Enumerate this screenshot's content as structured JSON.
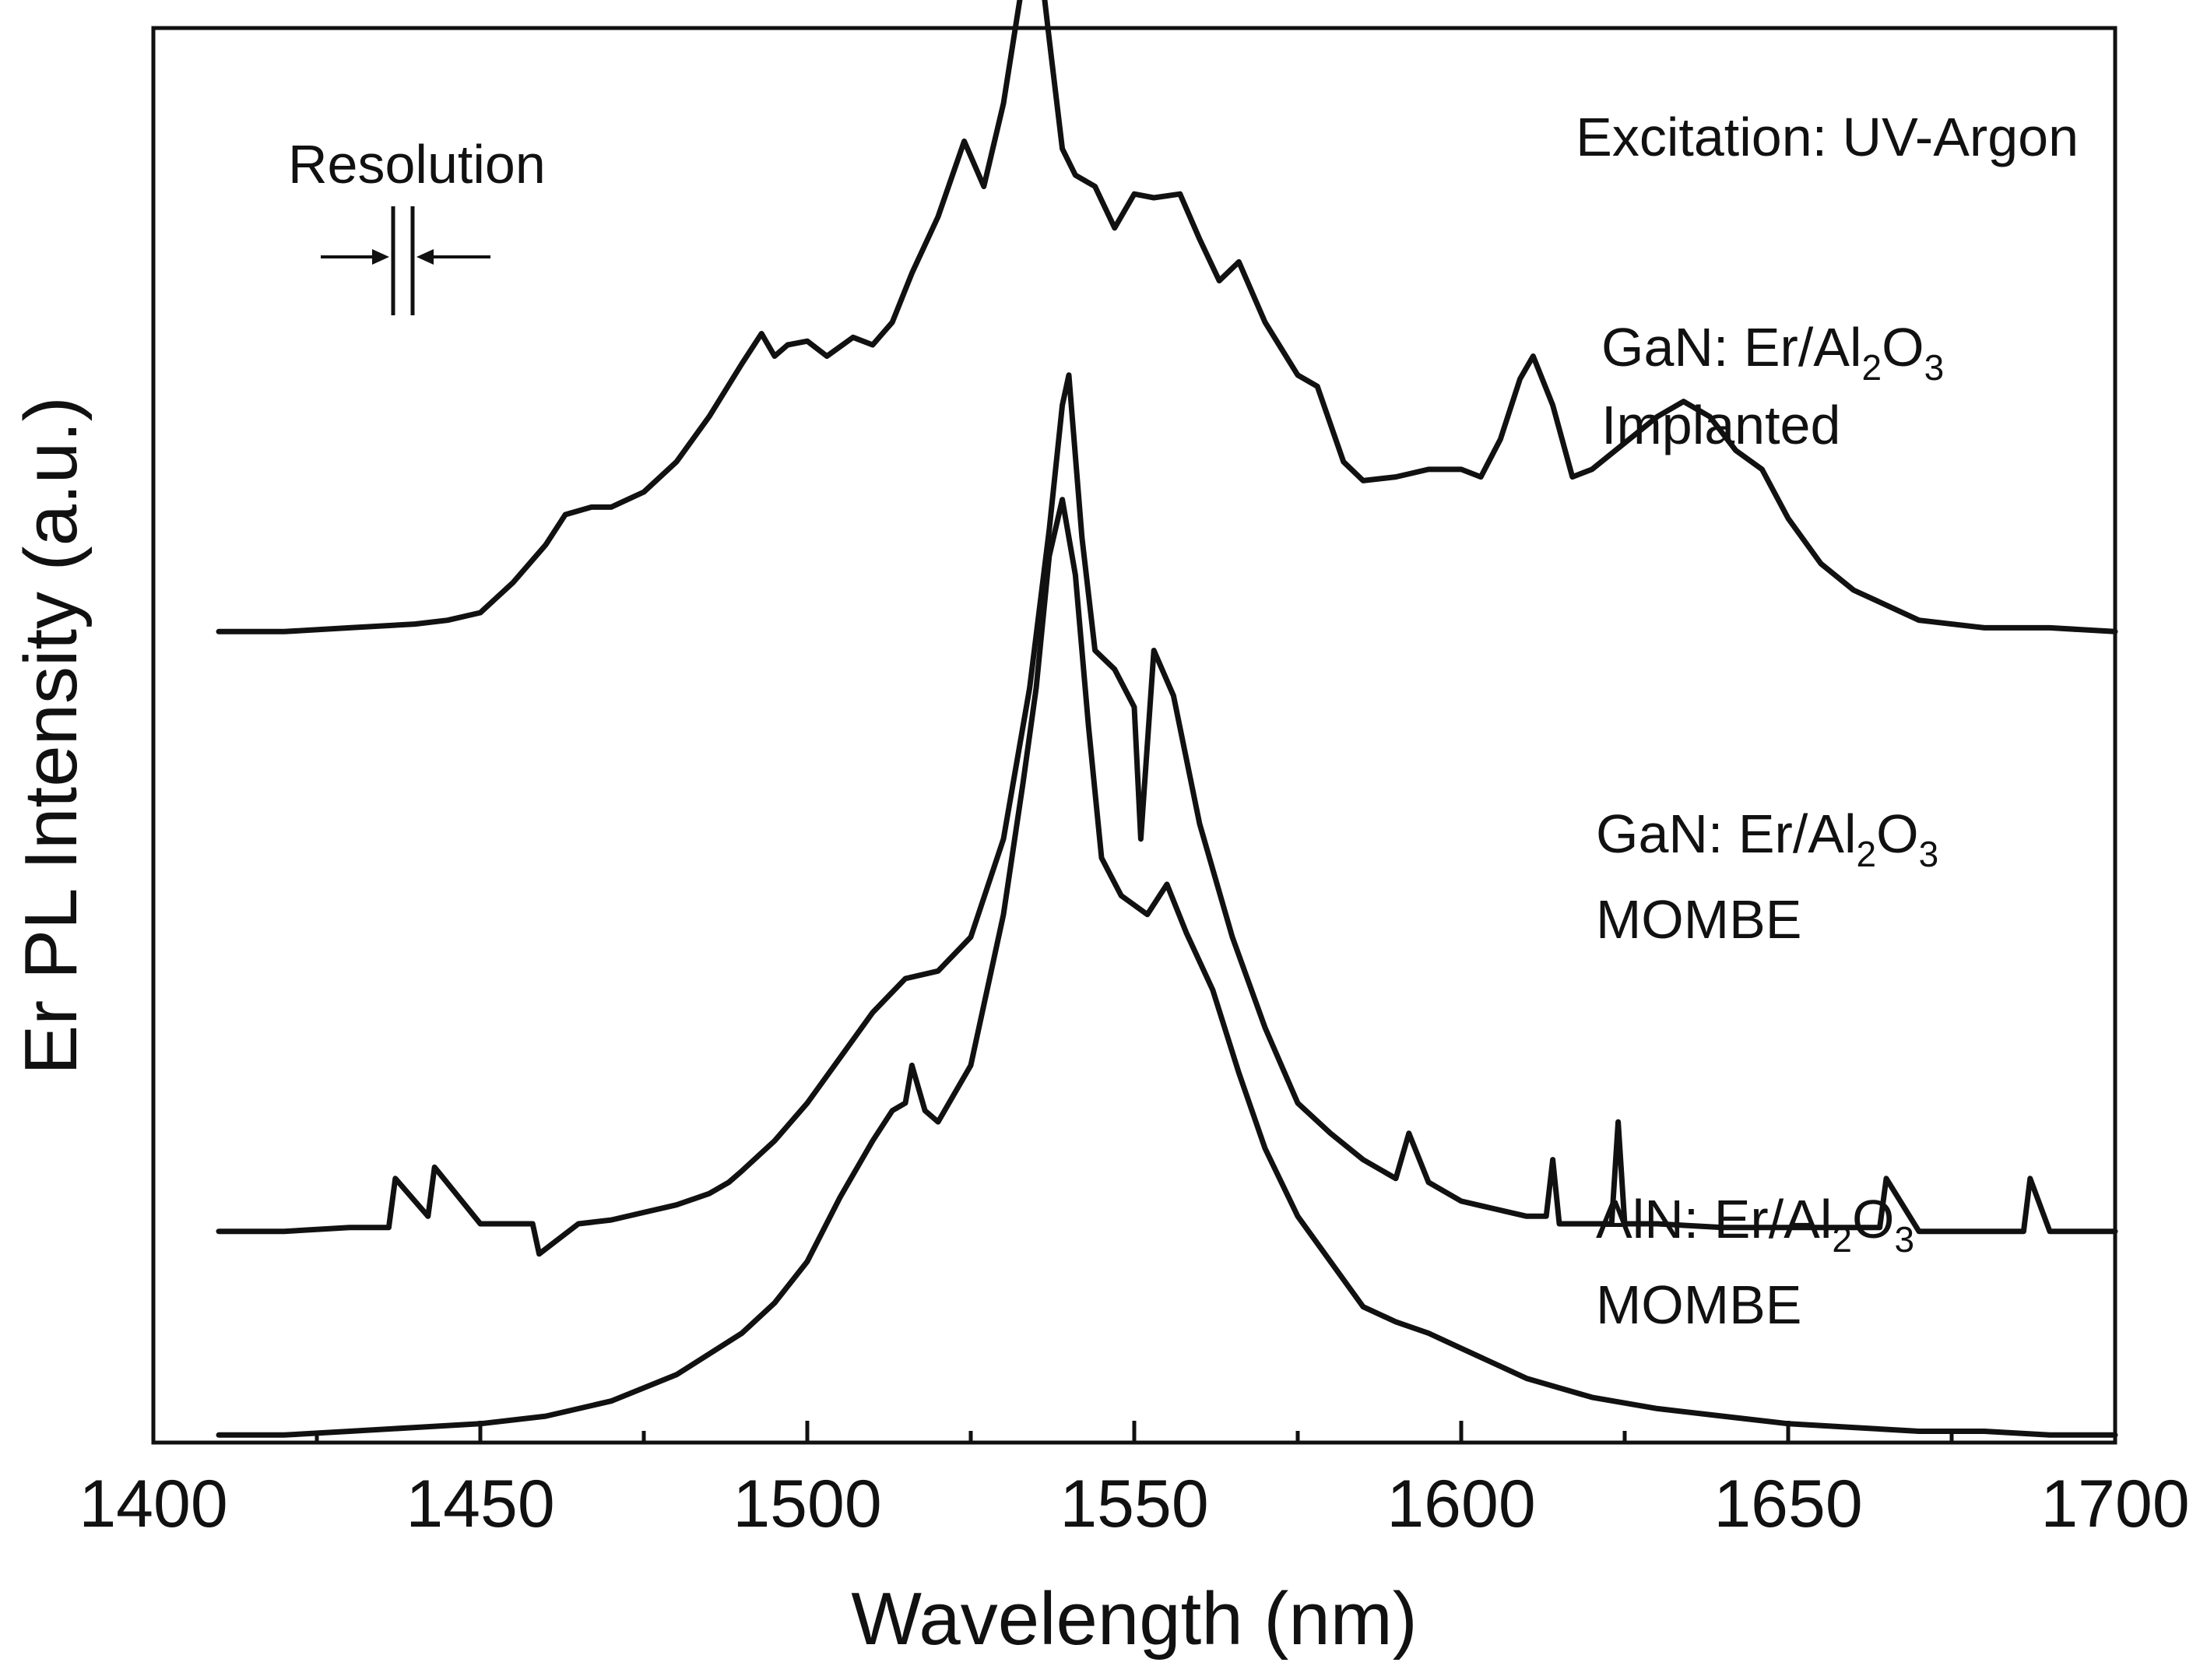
{
  "chart_data": {
    "type": "line",
    "title": "",
    "xlabel": "Wavelength (nm)",
    "ylabel": "Er PL Intensity (a.u.)",
    "xlim": [
      1400,
      1700
    ],
    "ylim": [
      0,
      3.75
    ],
    "x_ticks": [
      1400,
      1450,
      1500,
      1550,
      1600,
      1650,
      1700
    ],
    "x_tick_labels": [
      "1400",
      "1450",
      "1500",
      "1550",
      "1600",
      "1650",
      "1700"
    ],
    "y_ticks_shown": false,
    "grid": false,
    "annotations": {
      "excitation": "Excitation: UV-Argon",
      "resolution": "Resolution"
    },
    "series": [
      {
        "name": "GaN: Er/Al2O3 Implanted",
        "label_parts": {
          "host": "GaN: Er/Al",
          "sub1": "2",
          "mid": "O",
          "sub2": "3",
          "line2": "Implanted"
        },
        "x": [
          1410,
          1420,
          1430,
          1440,
          1445,
          1450,
          1455,
          1460,
          1463,
          1467,
          1470,
          1475,
          1480,
          1485,
          1490,
          1493,
          1495,
          1497,
          1500,
          1503,
          1507,
          1510,
          1513,
          1516,
          1520,
          1524,
          1527,
          1530,
          1533,
          1535,
          1537,
          1539,
          1541,
          1544,
          1547,
          1550,
          1553,
          1557,
          1560,
          1563,
          1566,
          1570,
          1575,
          1578,
          1582,
          1585,
          1590,
          1595,
          1600,
          1603,
          1606,
          1609,
          1611,
          1614,
          1617,
          1620,
          1625,
          1630,
          1634,
          1638,
          1642,
          1646,
          1650,
          1655,
          1660,
          1665,
          1670,
          1680,
          1690,
          1700
        ],
        "y": [
          2.15,
          2.15,
          2.16,
          2.17,
          2.18,
          2.2,
          2.28,
          2.38,
          2.46,
          2.48,
          2.48,
          2.52,
          2.6,
          2.72,
          2.86,
          2.94,
          2.88,
          2.91,
          2.92,
          2.88,
          2.93,
          2.91,
          2.97,
          3.1,
          3.25,
          3.45,
          3.33,
          3.55,
          3.88,
          4.02,
          3.72,
          3.43,
          3.36,
          3.33,
          3.22,
          3.31,
          3.3,
          3.31,
          3.19,
          3.08,
          3.13,
          2.97,
          2.83,
          2.8,
          2.6,
          2.55,
          2.56,
          2.58,
          2.58,
          2.56,
          2.66,
          2.82,
          2.88,
          2.75,
          2.56,
          2.58,
          2.65,
          2.72,
          2.76,
          2.72,
          2.63,
          2.58,
          2.45,
          2.33,
          2.26,
          2.22,
          2.18,
          2.16,
          2.16,
          2.15
        ]
      },
      {
        "name": "GaN: Er/Al2O3 MOMBE",
        "label_parts": {
          "host": "GaN: Er/Al",
          "sub1": "2",
          "mid": "O",
          "sub2": "3",
          "line2": "MOMBE"
        },
        "x": [
          1410,
          1420,
          1430,
          1436,
          1437,
          1442,
          1443,
          1450,
          1458,
          1459,
          1465,
          1470,
          1475,
          1480,
          1485,
          1488,
          1490,
          1495,
          1500,
          1505,
          1510,
          1515,
          1520,
          1525,
          1530,
          1534,
          1537,
          1539,
          1540,
          1542,
          1544,
          1547,
          1550,
          1551,
          1553,
          1556,
          1560,
          1565,
          1570,
          1575,
          1580,
          1585,
          1590,
          1592,
          1595,
          1600,
          1605,
          1610,
          1613,
          1614,
          1615,
          1620,
          1623,
          1624,
          1625,
          1630,
          1640,
          1650,
          1660,
          1664,
          1665,
          1670,
          1680,
          1686,
          1687,
          1690,
          1700
        ],
        "y": [
          0.56,
          0.56,
          0.57,
          0.57,
          0.7,
          0.6,
          0.73,
          0.58,
          0.58,
          0.5,
          0.58,
          0.59,
          0.61,
          0.63,
          0.66,
          0.69,
          0.72,
          0.8,
          0.9,
          1.02,
          1.14,
          1.23,
          1.25,
          1.34,
          1.6,
          2.0,
          2.42,
          2.75,
          2.83,
          2.4,
          2.1,
          2.05,
          1.95,
          1.6,
          2.1,
          1.98,
          1.64,
          1.34,
          1.1,
          0.9,
          0.82,
          0.75,
          0.7,
          0.82,
          0.69,
          0.64,
          0.62,
          0.6,
          0.6,
          0.75,
          0.58,
          0.58,
          0.58,
          0.85,
          0.58,
          0.58,
          0.57,
          0.57,
          0.57,
          0.57,
          0.7,
          0.56,
          0.56,
          0.56,
          0.7,
          0.56,
          0.56
        ]
      },
      {
        "name": "AlN: Er/Al2O3 MOMBE",
        "label_parts": {
          "host": "AlN: Er/Al",
          "sub1": "2",
          "mid": "O",
          "sub2": "3",
          "line2": "MOMBE"
        },
        "x": [
          1410,
          1420,
          1430,
          1440,
          1450,
          1460,
          1470,
          1480,
          1490,
          1495,
          1500,
          1505,
          1510,
          1513,
          1515,
          1516,
          1518,
          1520,
          1525,
          1530,
          1533,
          1535,
          1537,
          1539,
          1541,
          1543,
          1545,
          1548,
          1552,
          1555,
          1558,
          1562,
          1566,
          1570,
          1575,
          1580,
          1585,
          1590,
          1595,
          1600,
          1610,
          1620,
          1630,
          1640,
          1650,
          1660,
          1670,
          1680,
          1690,
          1700
        ],
        "y": [
          0.02,
          0.02,
          0.03,
          0.04,
          0.05,
          0.07,
          0.11,
          0.18,
          0.29,
          0.37,
          0.48,
          0.65,
          0.8,
          0.88,
          0.9,
          1.0,
          0.88,
          0.85,
          1.0,
          1.4,
          1.75,
          2.0,
          2.35,
          2.5,
          2.3,
          1.9,
          1.55,
          1.45,
          1.4,
          1.48,
          1.35,
          1.2,
          0.98,
          0.78,
          0.6,
          0.48,
          0.36,
          0.32,
          0.29,
          0.25,
          0.17,
          0.12,
          0.09,
          0.07,
          0.05,
          0.04,
          0.03,
          0.03,
          0.02,
          0.02
        ]
      }
    ]
  }
}
